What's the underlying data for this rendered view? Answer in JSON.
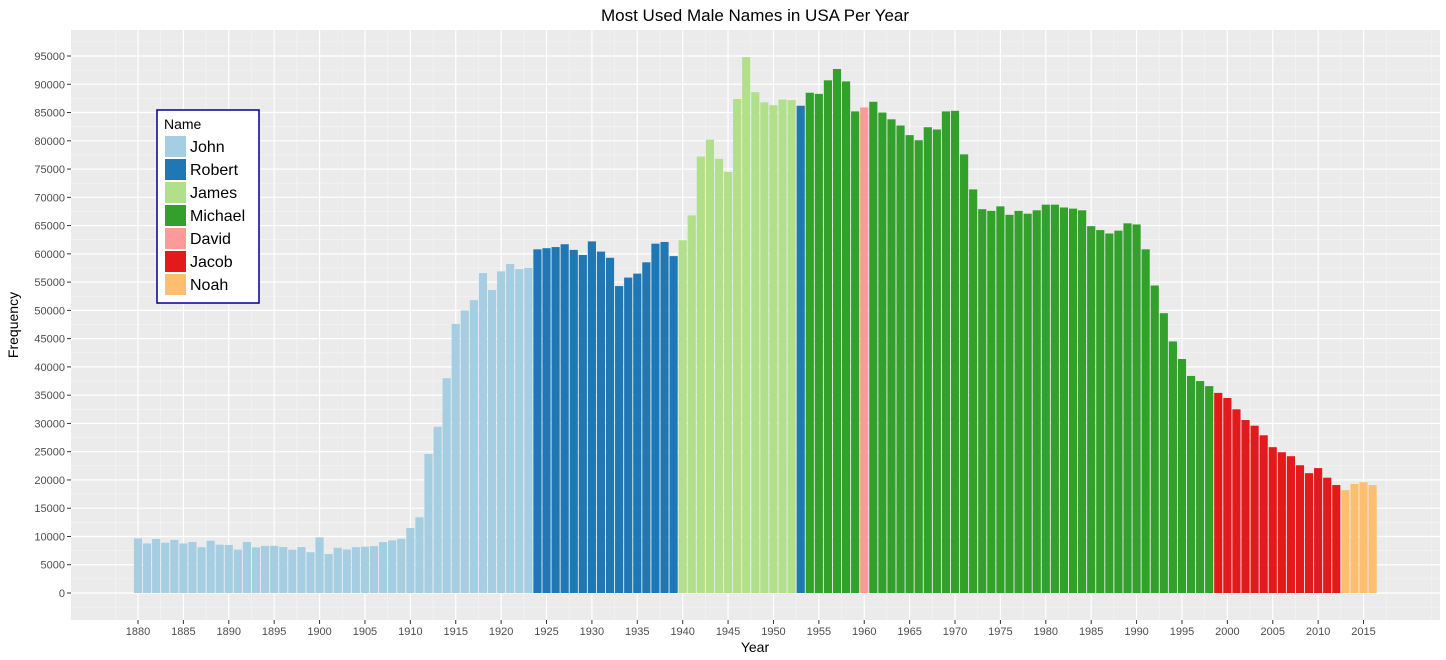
{
  "chart_data": {
    "type": "bar",
    "title": "Most Used Male Names in USA Per Year",
    "xlabel": "Year",
    "ylabel": "Frequency",
    "xlim": [
      1876,
      1421
    ],
    "ylim": [
      -5000,
      98500
    ],
    "x_ticks": [
      1880,
      1885,
      1890,
      1895,
      1900,
      1905,
      1910,
      1915,
      1920,
      1925,
      1930,
      1935,
      1940,
      1945,
      1950,
      1955,
      1960,
      1965,
      1970,
      1975,
      1980,
      1985,
      1990,
      1995,
      2000,
      2005,
      2010,
      2015
    ],
    "y_ticks": [
      0,
      5000,
      10000,
      15000,
      20000,
      25000,
      30000,
      35000,
      40000,
      45000,
      50000,
      55000,
      60000,
      65000,
      70000,
      75000,
      80000,
      85000,
      90000,
      95000
    ],
    "legend": {
      "title": "Name",
      "position": "top-left",
      "entries": [
        {
          "name": "John",
          "color": "#a6cee3"
        },
        {
          "name": "Robert",
          "color": "#1f78b4"
        },
        {
          "name": "James",
          "color": "#b2df8a"
        },
        {
          "name": "Michael",
          "color": "#33a02c"
        },
        {
          "name": "David",
          "color": "#fb9a99"
        },
        {
          "name": "Jacob",
          "color": "#e31a1c"
        },
        {
          "name": "Noah",
          "color": "#fdbf6f"
        }
      ]
    },
    "bars": [
      {
        "year": 1880,
        "name": "John",
        "value": 9655
      },
      {
        "year": 1881,
        "name": "John",
        "value": 8769
      },
      {
        "year": 1882,
        "name": "John",
        "value": 9557
      },
      {
        "year": 1883,
        "name": "John",
        "value": 8894
      },
      {
        "year": 1884,
        "name": "John",
        "value": 9388
      },
      {
        "year": 1885,
        "name": "John",
        "value": 8756
      },
      {
        "year": 1886,
        "name": "John",
        "value": 9026
      },
      {
        "year": 1887,
        "name": "John",
        "value": 8110
      },
      {
        "year": 1888,
        "name": "John",
        "value": 9247
      },
      {
        "year": 1889,
        "name": "John",
        "value": 8548
      },
      {
        "year": 1890,
        "name": "John",
        "value": 8502
      },
      {
        "year": 1891,
        "name": "John",
        "value": 7680
      },
      {
        "year": 1892,
        "name": "John",
        "value": 9034
      },
      {
        "year": 1893,
        "name": "John",
        "value": 8078
      },
      {
        "year": 1894,
        "name": "John",
        "value": 8330
      },
      {
        "year": 1895,
        "name": "John",
        "value": 8349
      },
      {
        "year": 1896,
        "name": "John",
        "value": 8119
      },
      {
        "year": 1897,
        "name": "John",
        "value": 7662
      },
      {
        "year": 1898,
        "name": "John",
        "value": 8120
      },
      {
        "year": 1899,
        "name": "John",
        "value": 7211
      },
      {
        "year": 1900,
        "name": "John",
        "value": 9829
      },
      {
        "year": 1901,
        "name": "John",
        "value": 6900
      },
      {
        "year": 1902,
        "name": "John",
        "value": 8002
      },
      {
        "year": 1903,
        "name": "John",
        "value": 7700
      },
      {
        "year": 1904,
        "name": "John",
        "value": 8100
      },
      {
        "year": 1905,
        "name": "John",
        "value": 8190
      },
      {
        "year": 1906,
        "name": "John",
        "value": 8300
      },
      {
        "year": 1907,
        "name": "John",
        "value": 9000
      },
      {
        "year": 1908,
        "name": "John",
        "value": 9300
      },
      {
        "year": 1909,
        "name": "John",
        "value": 9600
      },
      {
        "year": 1910,
        "name": "John",
        "value": 11500
      },
      {
        "year": 1911,
        "name": "John",
        "value": 13400
      },
      {
        "year": 1912,
        "name": "John",
        "value": 24600
      },
      {
        "year": 1913,
        "name": "John",
        "value": 29400
      },
      {
        "year": 1914,
        "name": "John",
        "value": 38000
      },
      {
        "year": 1915,
        "name": "John",
        "value": 47600
      },
      {
        "year": 1916,
        "name": "John",
        "value": 50000
      },
      {
        "year": 1917,
        "name": "John",
        "value": 51800
      },
      {
        "year": 1918,
        "name": "John",
        "value": 56600
      },
      {
        "year": 1919,
        "name": "John",
        "value": 53600
      },
      {
        "year": 1920,
        "name": "John",
        "value": 56900
      },
      {
        "year": 1921,
        "name": "John",
        "value": 58200
      },
      {
        "year": 1922,
        "name": "John",
        "value": 57300
      },
      {
        "year": 1923,
        "name": "John",
        "value": 57500
      },
      {
        "year": 1924,
        "name": "Robert",
        "value": 60800
      },
      {
        "year": 1925,
        "name": "Robert",
        "value": 61000
      },
      {
        "year": 1926,
        "name": "Robert",
        "value": 61200
      },
      {
        "year": 1927,
        "name": "Robert",
        "value": 61700
      },
      {
        "year": 1928,
        "name": "Robert",
        "value": 60700
      },
      {
        "year": 1929,
        "name": "Robert",
        "value": 59800
      },
      {
        "year": 1930,
        "name": "Robert",
        "value": 62200
      },
      {
        "year": 1931,
        "name": "Robert",
        "value": 60400
      },
      {
        "year": 1932,
        "name": "Robert",
        "value": 59300
      },
      {
        "year": 1933,
        "name": "Robert",
        "value": 54300
      },
      {
        "year": 1934,
        "name": "Robert",
        "value": 55800
      },
      {
        "year": 1935,
        "name": "Robert",
        "value": 56500
      },
      {
        "year": 1936,
        "name": "Robert",
        "value": 58500
      },
      {
        "year": 1937,
        "name": "Robert",
        "value": 61800
      },
      {
        "year": 1938,
        "name": "Robert",
        "value": 62100
      },
      {
        "year": 1939,
        "name": "Robert",
        "value": 59600
      },
      {
        "year": 1940,
        "name": "James",
        "value": 62400
      },
      {
        "year": 1941,
        "name": "James",
        "value": 66800
      },
      {
        "year": 1942,
        "name": "James",
        "value": 77200
      },
      {
        "year": 1943,
        "name": "James",
        "value": 80200
      },
      {
        "year": 1944,
        "name": "James",
        "value": 76800
      },
      {
        "year": 1945,
        "name": "James",
        "value": 74500
      },
      {
        "year": 1946,
        "name": "James",
        "value": 87400
      },
      {
        "year": 1947,
        "name": "James",
        "value": 94800
      },
      {
        "year": 1948,
        "name": "James",
        "value": 88600
      },
      {
        "year": 1949,
        "name": "James",
        "value": 86800
      },
      {
        "year": 1950,
        "name": "James",
        "value": 86300
      },
      {
        "year": 1951,
        "name": "James",
        "value": 87300
      },
      {
        "year": 1952,
        "name": "James",
        "value": 87200
      },
      {
        "year": 1953,
        "name": "Robert",
        "value": 86200
      },
      {
        "year": 1954,
        "name": "Michael",
        "value": 88500
      },
      {
        "year": 1955,
        "name": "Michael",
        "value": 88300
      },
      {
        "year": 1956,
        "name": "Michael",
        "value": 90700
      },
      {
        "year": 1957,
        "name": "Michael",
        "value": 92700
      },
      {
        "year": 1958,
        "name": "Michael",
        "value": 90500
      },
      {
        "year": 1959,
        "name": "Michael",
        "value": 85200
      },
      {
        "year": 1960,
        "name": "David",
        "value": 85900
      },
      {
        "year": 1961,
        "name": "Michael",
        "value": 86900
      },
      {
        "year": 1962,
        "name": "Michael",
        "value": 85000
      },
      {
        "year": 1963,
        "name": "Michael",
        "value": 83800
      },
      {
        "year": 1964,
        "name": "Michael",
        "value": 82700
      },
      {
        "year": 1965,
        "name": "Michael",
        "value": 81000
      },
      {
        "year": 1966,
        "name": "Michael",
        "value": 80100
      },
      {
        "year": 1967,
        "name": "Michael",
        "value": 82400
      },
      {
        "year": 1968,
        "name": "Michael",
        "value": 82000
      },
      {
        "year": 1969,
        "name": "Michael",
        "value": 85200
      },
      {
        "year": 1970,
        "name": "Michael",
        "value": 85300
      },
      {
        "year": 1971,
        "name": "Michael",
        "value": 77600
      },
      {
        "year": 1972,
        "name": "Michael",
        "value": 71400
      },
      {
        "year": 1973,
        "name": "Michael",
        "value": 67900
      },
      {
        "year": 1974,
        "name": "Michael",
        "value": 67600
      },
      {
        "year": 1975,
        "name": "Michael",
        "value": 68400
      },
      {
        "year": 1976,
        "name": "Michael",
        "value": 66900
      },
      {
        "year": 1977,
        "name": "Michael",
        "value": 67600
      },
      {
        "year": 1978,
        "name": "Michael",
        "value": 67100
      },
      {
        "year": 1979,
        "name": "Michael",
        "value": 67700
      },
      {
        "year": 1980,
        "name": "Michael",
        "value": 68700
      },
      {
        "year": 1981,
        "name": "Michael",
        "value": 68700
      },
      {
        "year": 1982,
        "name": "Michael",
        "value": 68200
      },
      {
        "year": 1983,
        "name": "Michael",
        "value": 68000
      },
      {
        "year": 1984,
        "name": "Michael",
        "value": 67700
      },
      {
        "year": 1985,
        "name": "Michael",
        "value": 64900
      },
      {
        "year": 1986,
        "name": "Michael",
        "value": 64200
      },
      {
        "year": 1987,
        "name": "Michael",
        "value": 63600
      },
      {
        "year": 1988,
        "name": "Michael",
        "value": 64100
      },
      {
        "year": 1989,
        "name": "Michael",
        "value": 65400
      },
      {
        "year": 1990,
        "name": "Michael",
        "value": 65200
      },
      {
        "year": 1991,
        "name": "Michael",
        "value": 60800
      },
      {
        "year": 1992,
        "name": "Michael",
        "value": 54400
      },
      {
        "year": 1993,
        "name": "Michael",
        "value": 49500
      },
      {
        "year": 1994,
        "name": "Michael",
        "value": 44500
      },
      {
        "year": 1995,
        "name": "Michael",
        "value": 41400
      },
      {
        "year": 1996,
        "name": "Michael",
        "value": 38400
      },
      {
        "year": 1997,
        "name": "Michael",
        "value": 37500
      },
      {
        "year": 1998,
        "name": "Michael",
        "value": 36600
      },
      {
        "year": 1999,
        "name": "Jacob",
        "value": 35400
      },
      {
        "year": 2000,
        "name": "Jacob",
        "value": 34500
      },
      {
        "year": 2001,
        "name": "Jacob",
        "value": 32500
      },
      {
        "year": 2002,
        "name": "Jacob",
        "value": 30600
      },
      {
        "year": 2003,
        "name": "Jacob",
        "value": 29600
      },
      {
        "year": 2004,
        "name": "Jacob",
        "value": 27900
      },
      {
        "year": 2005,
        "name": "Jacob",
        "value": 25800
      },
      {
        "year": 2006,
        "name": "Jacob",
        "value": 24900
      },
      {
        "year": 2007,
        "name": "Jacob",
        "value": 24200
      },
      {
        "year": 2008,
        "name": "Jacob",
        "value": 22600
      },
      {
        "year": 2009,
        "name": "Jacob",
        "value": 21200
      },
      {
        "year": 2010,
        "name": "Jacob",
        "value": 22100
      },
      {
        "year": 2011,
        "name": "Jacob",
        "value": 20400
      },
      {
        "year": 2012,
        "name": "Jacob",
        "value": 19100
      },
      {
        "year": 2013,
        "name": "Noah",
        "value": 18200
      },
      {
        "year": 2014,
        "name": "Noah",
        "value": 19300
      },
      {
        "year": 2015,
        "name": "Noah",
        "value": 19600
      },
      {
        "year": 2016,
        "name": "Noah",
        "value": 19100
      }
    ]
  }
}
